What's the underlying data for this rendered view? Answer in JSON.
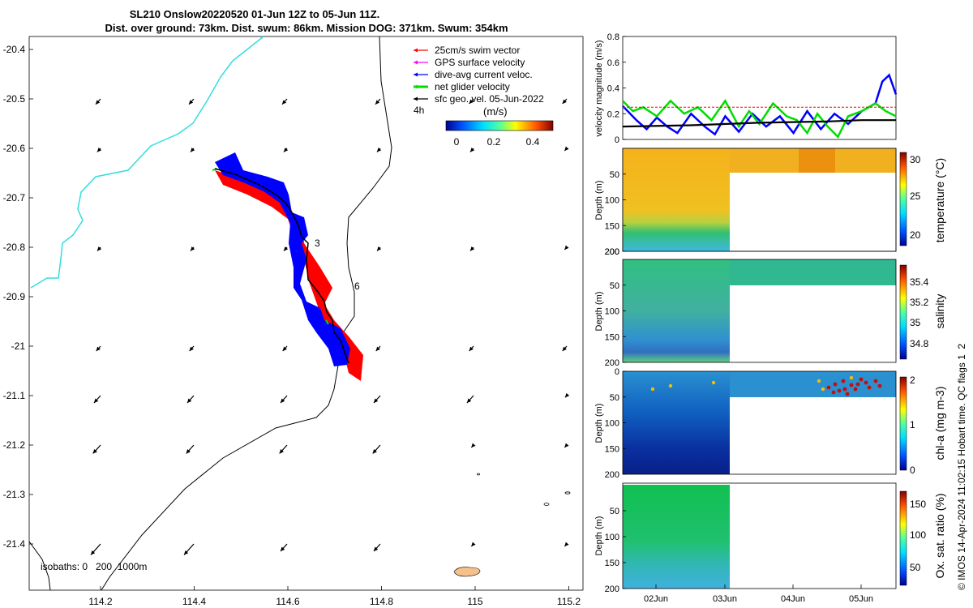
{
  "title": {
    "line1": "SL210 Onslow20220520 01-Jun 12Z to 05-Jun 11Z.",
    "line2": "Dist. over ground: 73km. Dist. swum: 86km. Mission DOG: 371km. Swum: 354km"
  },
  "colors": {
    "swim_vector": "#ff0000",
    "gps_velocity": "#ff00ff",
    "dive_avg": "#0000ff",
    "net_velocity": "#00dd00",
    "sfc_geo": "#000000",
    "coast": "#33dddd",
    "island": "#f5c08a",
    "track_red": "#ff0000",
    "track_blue": "#0000ff"
  },
  "map": {
    "legend": [
      {
        "label": "25cm/s swim vector",
        "color": "#ff0000"
      },
      {
        "label": "GPS surface velocity",
        "color": "#ff00ff"
      },
      {
        "label": "dive-avg current veloc.",
        "color": "#0000ff"
      },
      {
        "label": "net glider velocity",
        "color": "#00dd00"
      },
      {
        "label": "sfc geo. vel. 05-Jun-2022",
        "color": "#000000"
      }
    ],
    "time_label": "4h",
    "colorbar": {
      "label": "(m/s)",
      "ticks": [
        "0",
        "0.2",
        "0.4"
      ]
    },
    "x_ticks": [
      "114.2",
      "114.4",
      "114.6",
      "114.8",
      "115",
      "115.2"
    ],
    "y_ticks": [
      "-20.4",
      "-20.5",
      "-20.6",
      "-20.7",
      "-20.8",
      "-20.9",
      "-21",
      "-21.1",
      "-21.2",
      "-21.3",
      "-21.4"
    ],
    "isobaths": "isobaths: 0   200  1000m",
    "track_labels": [
      "3",
      "6"
    ]
  },
  "chart_data": [
    {
      "type": "line",
      "title": "",
      "ylabel": "velocity magnitude (m/s)",
      "ylim": [
        0,
        0.8
      ],
      "yticks": [
        "0",
        "0.2",
        "0.4",
        "0.6",
        "0.8"
      ],
      "x_range_days": [
        0,
        4
      ],
      "series": [
        {
          "name": "25cm/s swim vector",
          "color": "#ff0000",
          "x": [
            0,
            4
          ],
          "values": [
            0.25,
            0.25
          ]
        },
        {
          "name": "dive-avg current veloc.",
          "color": "#0000ff",
          "x": [
            0,
            0.2,
            0.35,
            0.5,
            0.65,
            0.8,
            1.0,
            1.2,
            1.35,
            1.5,
            1.7,
            1.9,
            2.1,
            2.3,
            2.5,
            2.7,
            2.9,
            3.1,
            3.3,
            3.5,
            3.7,
            3.8,
            3.9,
            4.0
          ],
          "values": [
            0.26,
            0.15,
            0.08,
            0.17,
            0.1,
            0.05,
            0.2,
            0.1,
            0.04,
            0.18,
            0.06,
            0.2,
            0.1,
            0.18,
            0.05,
            0.22,
            0.08,
            0.2,
            0.12,
            0.22,
            0.28,
            0.45,
            0.5,
            0.35
          ]
        },
        {
          "name": "net glider velocity",
          "color": "#00dd00",
          "x": [
            0,
            0.15,
            0.3,
            0.5,
            0.7,
            0.9,
            1.1,
            1.3,
            1.5,
            1.7,
            1.85,
            2.0,
            2.2,
            2.4,
            2.55,
            2.7,
            2.85,
            3.0,
            3.15,
            3.3,
            3.5,
            3.7,
            3.85,
            4.0
          ],
          "values": [
            0.3,
            0.22,
            0.25,
            0.18,
            0.3,
            0.2,
            0.25,
            0.15,
            0.3,
            0.1,
            0.22,
            0.12,
            0.28,
            0.18,
            0.15,
            0.05,
            0.2,
            0.1,
            0.02,
            0.18,
            0.22,
            0.28,
            0.22,
            0.18
          ]
        },
        {
          "name": "sfc geo. vel.",
          "color": "#000000",
          "x": [
            0,
            1,
            2,
            3,
            3.5,
            4
          ],
          "values": [
            0.1,
            0.11,
            0.13,
            0.14,
            0.15,
            0.15
          ]
        }
      ]
    },
    {
      "type": "heatmap",
      "ylabel": "Depth (m)",
      "cbar_label": "temperature (°C)",
      "cbar_ticks": [
        "30",
        "25",
        "20"
      ],
      "yticks": [
        "50",
        "100",
        "150",
        "200"
      ]
    },
    {
      "type": "heatmap",
      "ylabel": "Depth (m)",
      "cbar_label": "salinity",
      "cbar_ticks": [
        "35.4",
        "35.2",
        "35",
        "34.8"
      ],
      "yticks": [
        "50",
        "100",
        "150",
        "200"
      ]
    },
    {
      "type": "heatmap",
      "ylabel": "Depth (m)",
      "cbar_label": "chl-a (mg m-3)",
      "cbar_ticks": [
        "2",
        "1",
        "0"
      ],
      "yticks": [
        "0",
        "50",
        "100",
        "150",
        "200"
      ]
    },
    {
      "type": "heatmap",
      "ylabel": "Depth (m)",
      "cbar_label": "Ox. sat. ratio (%)",
      "cbar_ticks": [
        "150",
        "100",
        "50"
      ],
      "yticks": [
        "50",
        "100",
        "150",
        "200"
      ],
      "xticks": [
        "02Jun",
        "03Jun",
        "04Jun",
        "05Jun"
      ]
    }
  ],
  "footer": "© IMOS 14-Apr-2024 11:02:15 Hobart time. QC flags 1  2"
}
